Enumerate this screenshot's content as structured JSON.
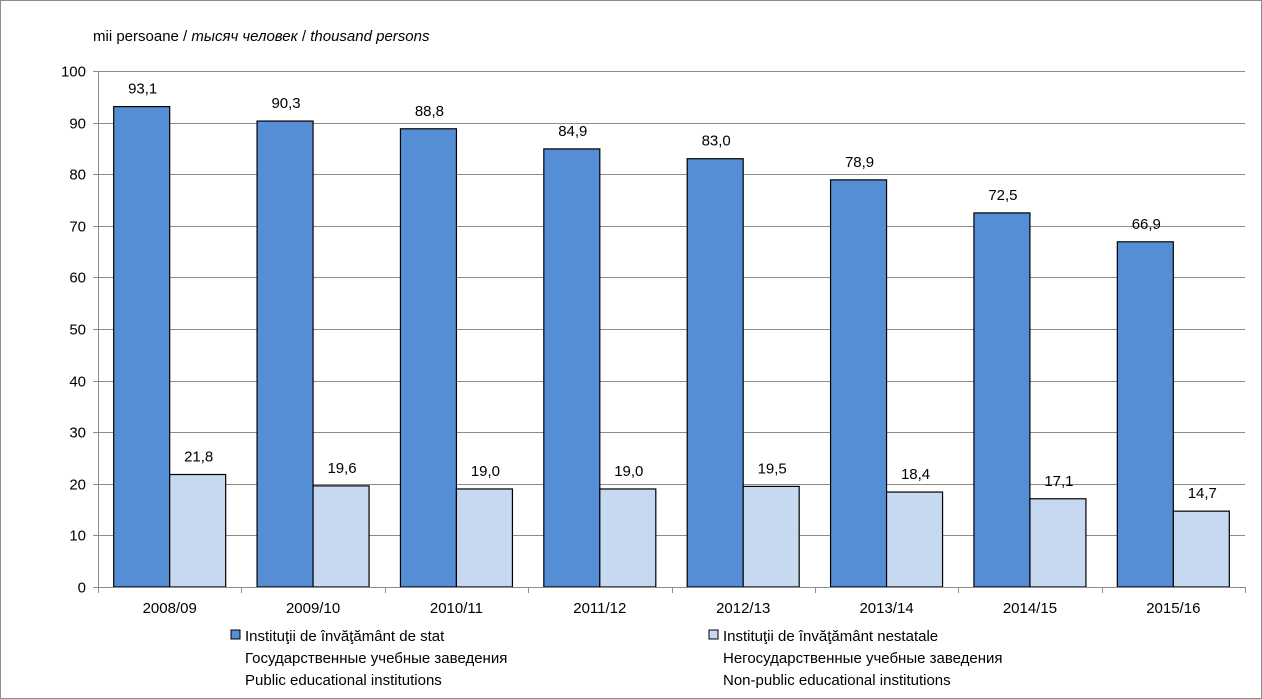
{
  "chart_data": {
    "type": "bar",
    "unit_label": {
      "ro": "mii persoane",
      "sep1": " / ",
      "ru": "тысяч человек",
      "sep2": " / ",
      "en": "thousand persons"
    },
    "categories": [
      "2008/09",
      "2009/10",
      "2010/11",
      "2011/12",
      "2012/13",
      "2013/14",
      "2014/15",
      "2015/16"
    ],
    "series": [
      {
        "name": "Instituţii de învăţământ de stat",
        "name_lines": [
          "Instituţii de învăţământ de stat",
          "Государственные учебные заведения",
          "Public educational institutions"
        ],
        "values": [
          93.1,
          90.3,
          88.8,
          84.9,
          83.0,
          78.9,
          72.5,
          66.9
        ],
        "labels": [
          "93,1",
          "90,3",
          "88,8",
          "84,9",
          "83,0",
          "78,9",
          "72,5",
          "66,9"
        ],
        "color": "#558ed5"
      },
      {
        "name": "Instituţii de învăţământ nestatale",
        "name_lines": [
          "Instituţii de învăţământ nestatale",
          "Негосударственные учебные заведения",
          "Non-public educational institutions"
        ],
        "values": [
          21.8,
          19.6,
          19.0,
          19.0,
          19.5,
          18.4,
          17.1,
          14.7
        ],
        "labels": [
          "21,8",
          "19,6",
          "19,0",
          "19,0",
          "19,5",
          "18,4",
          "17,1",
          "14,7"
        ],
        "color": "#c6d9f1"
      }
    ],
    "ylim": [
      0,
      100
    ],
    "yticks": [
      0,
      10,
      20,
      30,
      40,
      50,
      60,
      70,
      80,
      90,
      100
    ],
    "grid": true,
    "legend": "bottom"
  }
}
